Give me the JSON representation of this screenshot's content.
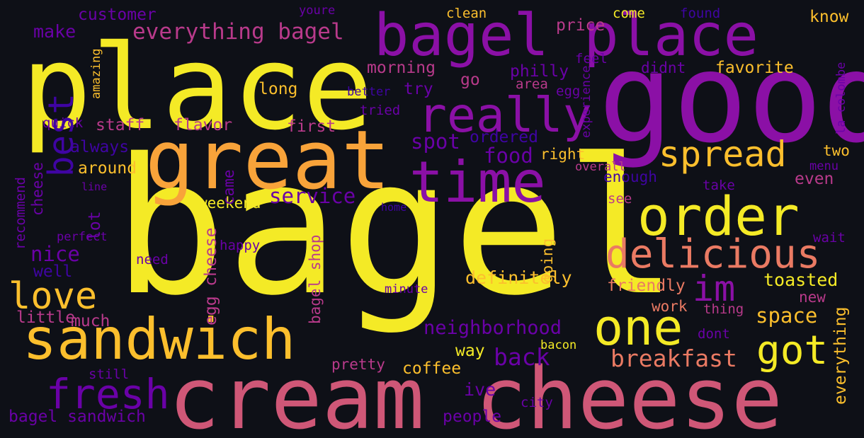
{
  "palette": {
    "background": "#0e1017",
    "yellow": "#f4ea26",
    "gold": "#fcbf2d",
    "orange": "#f8a33a",
    "coral": "#ea7a63",
    "pink": "#cf5777",
    "rose": "#b93a8b",
    "purple": "#8b10a6",
    "violet": "#6a01a7",
    "indigo": "#3f04a3"
  },
  "words": [
    {
      "text": "bagel",
      "color": "yellow"
    },
    {
      "text": "cream cheese",
      "color": "pink"
    },
    {
      "text": "good",
      "color": "purple"
    },
    {
      "text": "place",
      "color": "yellow"
    },
    {
      "text": "great",
      "color": "orange"
    },
    {
      "text": "bagel place",
      "color": "purple"
    },
    {
      "text": "time",
      "color": "purple"
    },
    {
      "text": "sandwich",
      "color": "gold"
    },
    {
      "text": "order",
      "color": "yellow"
    },
    {
      "text": "really",
      "color": "purple"
    },
    {
      "text": "one",
      "color": "yellow"
    },
    {
      "text": "delicious",
      "color": "coral"
    },
    {
      "text": "fresh",
      "color": "violet"
    },
    {
      "text": "spread",
      "color": "gold"
    },
    {
      "text": "love",
      "color": "gold"
    },
    {
      "text": "got",
      "color": "yellow"
    },
    {
      "text": "im",
      "color": "purple"
    },
    {
      "text": "best",
      "color": "indigo"
    },
    {
      "text": "everything bagel",
      "color": "rose"
    },
    {
      "text": "neighborhood",
      "color": "violet"
    },
    {
      "text": "breakfast",
      "color": "coral"
    },
    {
      "text": "service",
      "color": "violet"
    },
    {
      "text": "back",
      "color": "violet"
    },
    {
      "text": "space",
      "color": "gold"
    },
    {
      "text": "nice",
      "color": "violet"
    },
    {
      "text": "bagel sandwich",
      "color": "violet"
    },
    {
      "text": "food",
      "color": "violet"
    },
    {
      "text": "spot",
      "color": "violet"
    },
    {
      "text": "definitely",
      "color": "gold"
    },
    {
      "text": "ive",
      "color": "violet"
    },
    {
      "text": "toasted",
      "color": "yellow"
    },
    {
      "text": "make",
      "color": "violet"
    },
    {
      "text": "customer",
      "color": "violet"
    },
    {
      "text": "friendly",
      "color": "coral"
    },
    {
      "text": "morning",
      "color": "rose"
    },
    {
      "text": "philly",
      "color": "violet"
    },
    {
      "text": "favorite",
      "color": "gold"
    },
    {
      "text": "price",
      "color": "rose"
    },
    {
      "text": "know",
      "color": "gold"
    },
    {
      "text": "first",
      "color": "rose"
    },
    {
      "text": "long",
      "color": "gold"
    },
    {
      "text": "try",
      "color": "violet"
    },
    {
      "text": "go",
      "color": "rose"
    },
    {
      "text": "staff",
      "color": "rose"
    },
    {
      "text": "flavor",
      "color": "rose"
    },
    {
      "text": "ordered",
      "color": "indigo"
    },
    {
      "text": "always",
      "color": "indigo"
    },
    {
      "text": "coffee",
      "color": "gold"
    },
    {
      "text": "pretty",
      "color": "rose"
    },
    {
      "text": "work",
      "color": "coral"
    },
    {
      "text": "new",
      "color": "rose"
    },
    {
      "text": "way",
      "color": "yellow"
    },
    {
      "text": "much",
      "color": "rose"
    },
    {
      "text": "well",
      "color": "indigo"
    },
    {
      "text": "little",
      "color": "rose"
    },
    {
      "text": "around",
      "color": "gold"
    },
    {
      "text": "weekend",
      "color": "yellow"
    },
    {
      "text": "right",
      "color": "gold"
    },
    {
      "text": "enough",
      "color": "indigo"
    },
    {
      "text": "even",
      "color": "rose"
    },
    {
      "text": "two",
      "color": "gold"
    },
    {
      "text": "people",
      "color": "violet"
    },
    {
      "text": "city",
      "color": "violet"
    },
    {
      "text": "come",
      "color": "yellow"
    },
    {
      "text": "clean",
      "color": "gold"
    },
    {
      "text": "found",
      "color": "indigo"
    },
    {
      "text": "youre",
      "color": "violet"
    },
    {
      "text": "feel",
      "color": "violet"
    },
    {
      "text": "didnt",
      "color": "violet"
    },
    {
      "text": "area",
      "color": "rose"
    },
    {
      "text": "egg",
      "color": "violet"
    },
    {
      "text": "better",
      "color": "indigo"
    },
    {
      "text": "tried",
      "color": "violet"
    },
    {
      "text": "quick",
      "color": "violet"
    },
    {
      "text": "menu",
      "color": "violet"
    },
    {
      "text": "overall",
      "color": "rose"
    },
    {
      "text": "take",
      "color": "violet"
    },
    {
      "text": "see",
      "color": "rose"
    },
    {
      "text": "wait",
      "color": "violet"
    },
    {
      "text": "happy",
      "color": "violet"
    },
    {
      "text": "need",
      "color": "violet"
    },
    {
      "text": "perfect",
      "color": "violet"
    },
    {
      "text": "line",
      "color": "violet"
    },
    {
      "text": "home",
      "color": "indigo"
    },
    {
      "text": "minute",
      "color": "violet"
    },
    {
      "text": "thing",
      "color": "rose"
    },
    {
      "text": "dont",
      "color": "violet"
    },
    {
      "text": "bacon",
      "color": "yellow"
    },
    {
      "text": "still",
      "color": "violet"
    },
    {
      "text": "amazing",
      "color": "gold"
    },
    {
      "text": "cheese",
      "color": "violet"
    },
    {
      "text": "recommend",
      "color": "violet"
    },
    {
      "text": "lot",
      "color": "violet"
    },
    {
      "text": "came",
      "color": "violet"
    },
    {
      "text": "egg cheese",
      "color": "rose"
    },
    {
      "text": "bagel shop",
      "color": "rose"
    },
    {
      "text": "going",
      "color": "gold"
    },
    {
      "text": "experience",
      "color": "violet"
    },
    {
      "text": "la colombe",
      "color": "violet"
    },
    {
      "text": "everything",
      "color": "gold"
    }
  ]
}
